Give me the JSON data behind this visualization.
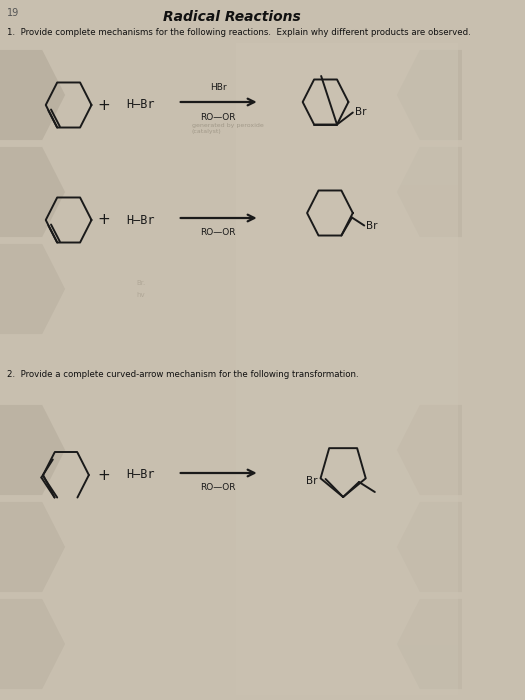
{
  "bg_color": "#c8bfaf",
  "paper_color": "#e8e2d8",
  "box_color": "#d0c8ba",
  "text_color": "#111111",
  "title": "Radical Reactions",
  "q1_text": "1.  Provide complete mechanisms for the following reactions.  Explain why different products are observed.",
  "q2_text": "2.  Provide a complete curved-arrow mechanism for the following transformation.",
  "hbr": "H—Br",
  "roor": "RO—OR",
  "hbr_label": "HBr",
  "br": "Br",
  "fig_width": 525,
  "fig_height": 700
}
